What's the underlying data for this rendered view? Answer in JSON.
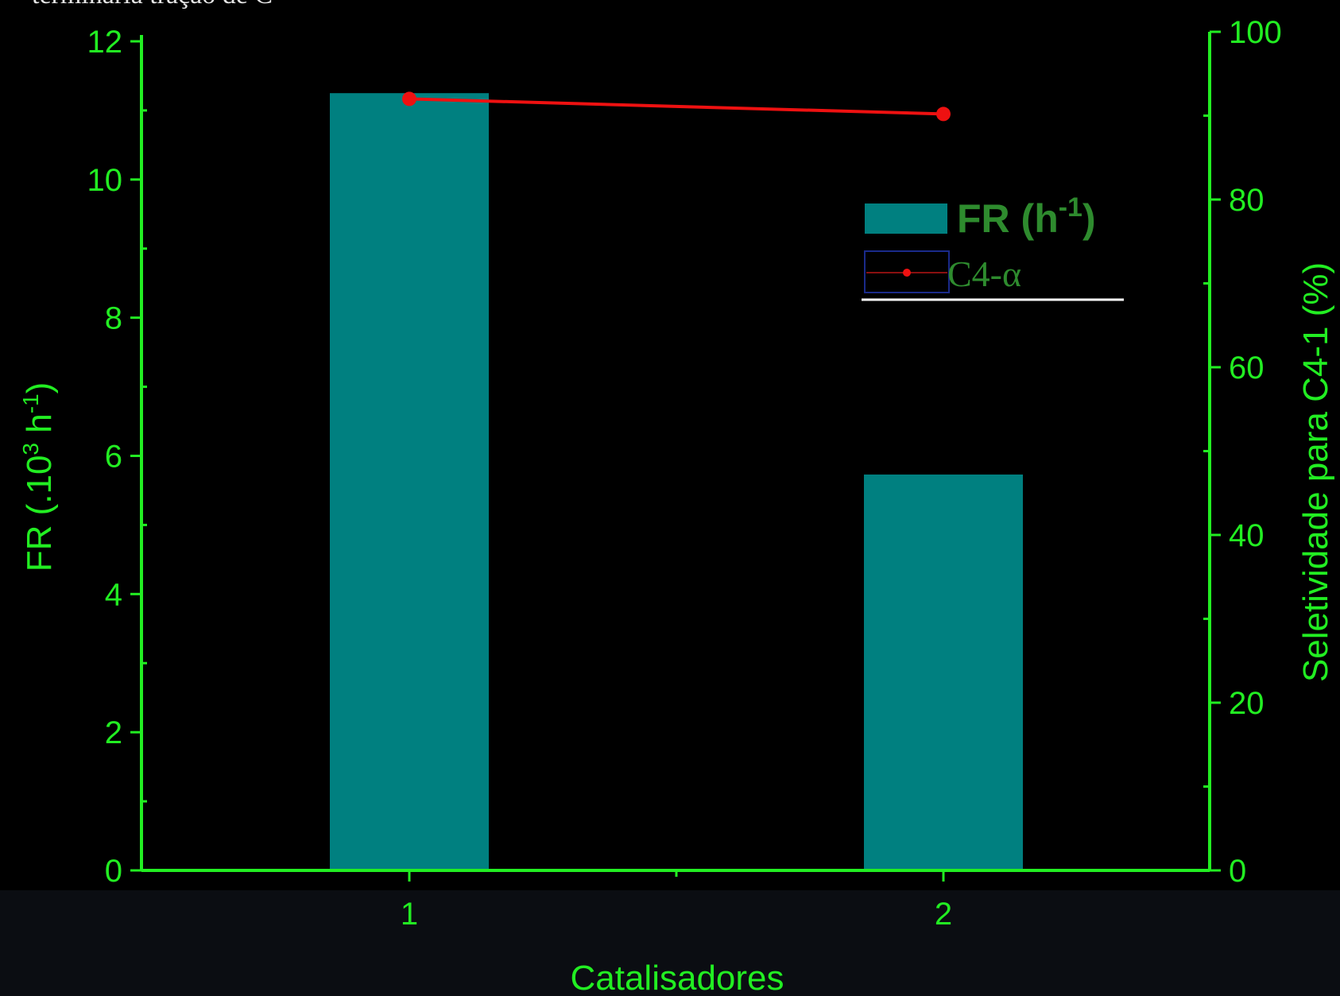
{
  "caption_fragment": "terminaria tração de C",
  "colors": {
    "background": "#000000",
    "bottom_band": "#0b0d12",
    "axis": "#22ee22",
    "bar": "#008080",
    "line": "#ee1111",
    "legend_text": "#2e8b2e",
    "legend_rule": "#ffffff"
  },
  "chart_data": {
    "type": "bar",
    "categories": [
      "1",
      "2"
    ],
    "xlabel": "Catalisadores",
    "ylabel": "FR (.10",
    "ylabel_sup1": "3",
    "ylabel_mid": " h",
    "ylabel_sup2": "-1",
    "ylabel_end": ")",
    "y2label": "Seletividade para C4-1 (%)",
    "ylim": [
      0,
      12
    ],
    "y2lim": [
      0,
      100
    ],
    "yticks": [
      "0",
      "2",
      "4",
      "6",
      "8",
      "10",
      "12"
    ],
    "y2ticks": [
      "0",
      "20",
      "40",
      "60",
      "80",
      "100"
    ],
    "series": [
      {
        "name": "FR (h",
        "name_sup": "-1",
        "name_end": ")",
        "type": "bar",
        "axis": "left",
        "values": [
          11.25,
          5.73
        ]
      },
      {
        "name": "C4-α",
        "type": "line",
        "axis": "right",
        "values": [
          92.0,
          90.2
        ]
      }
    ],
    "grid": false,
    "legend_position": "top-right"
  }
}
